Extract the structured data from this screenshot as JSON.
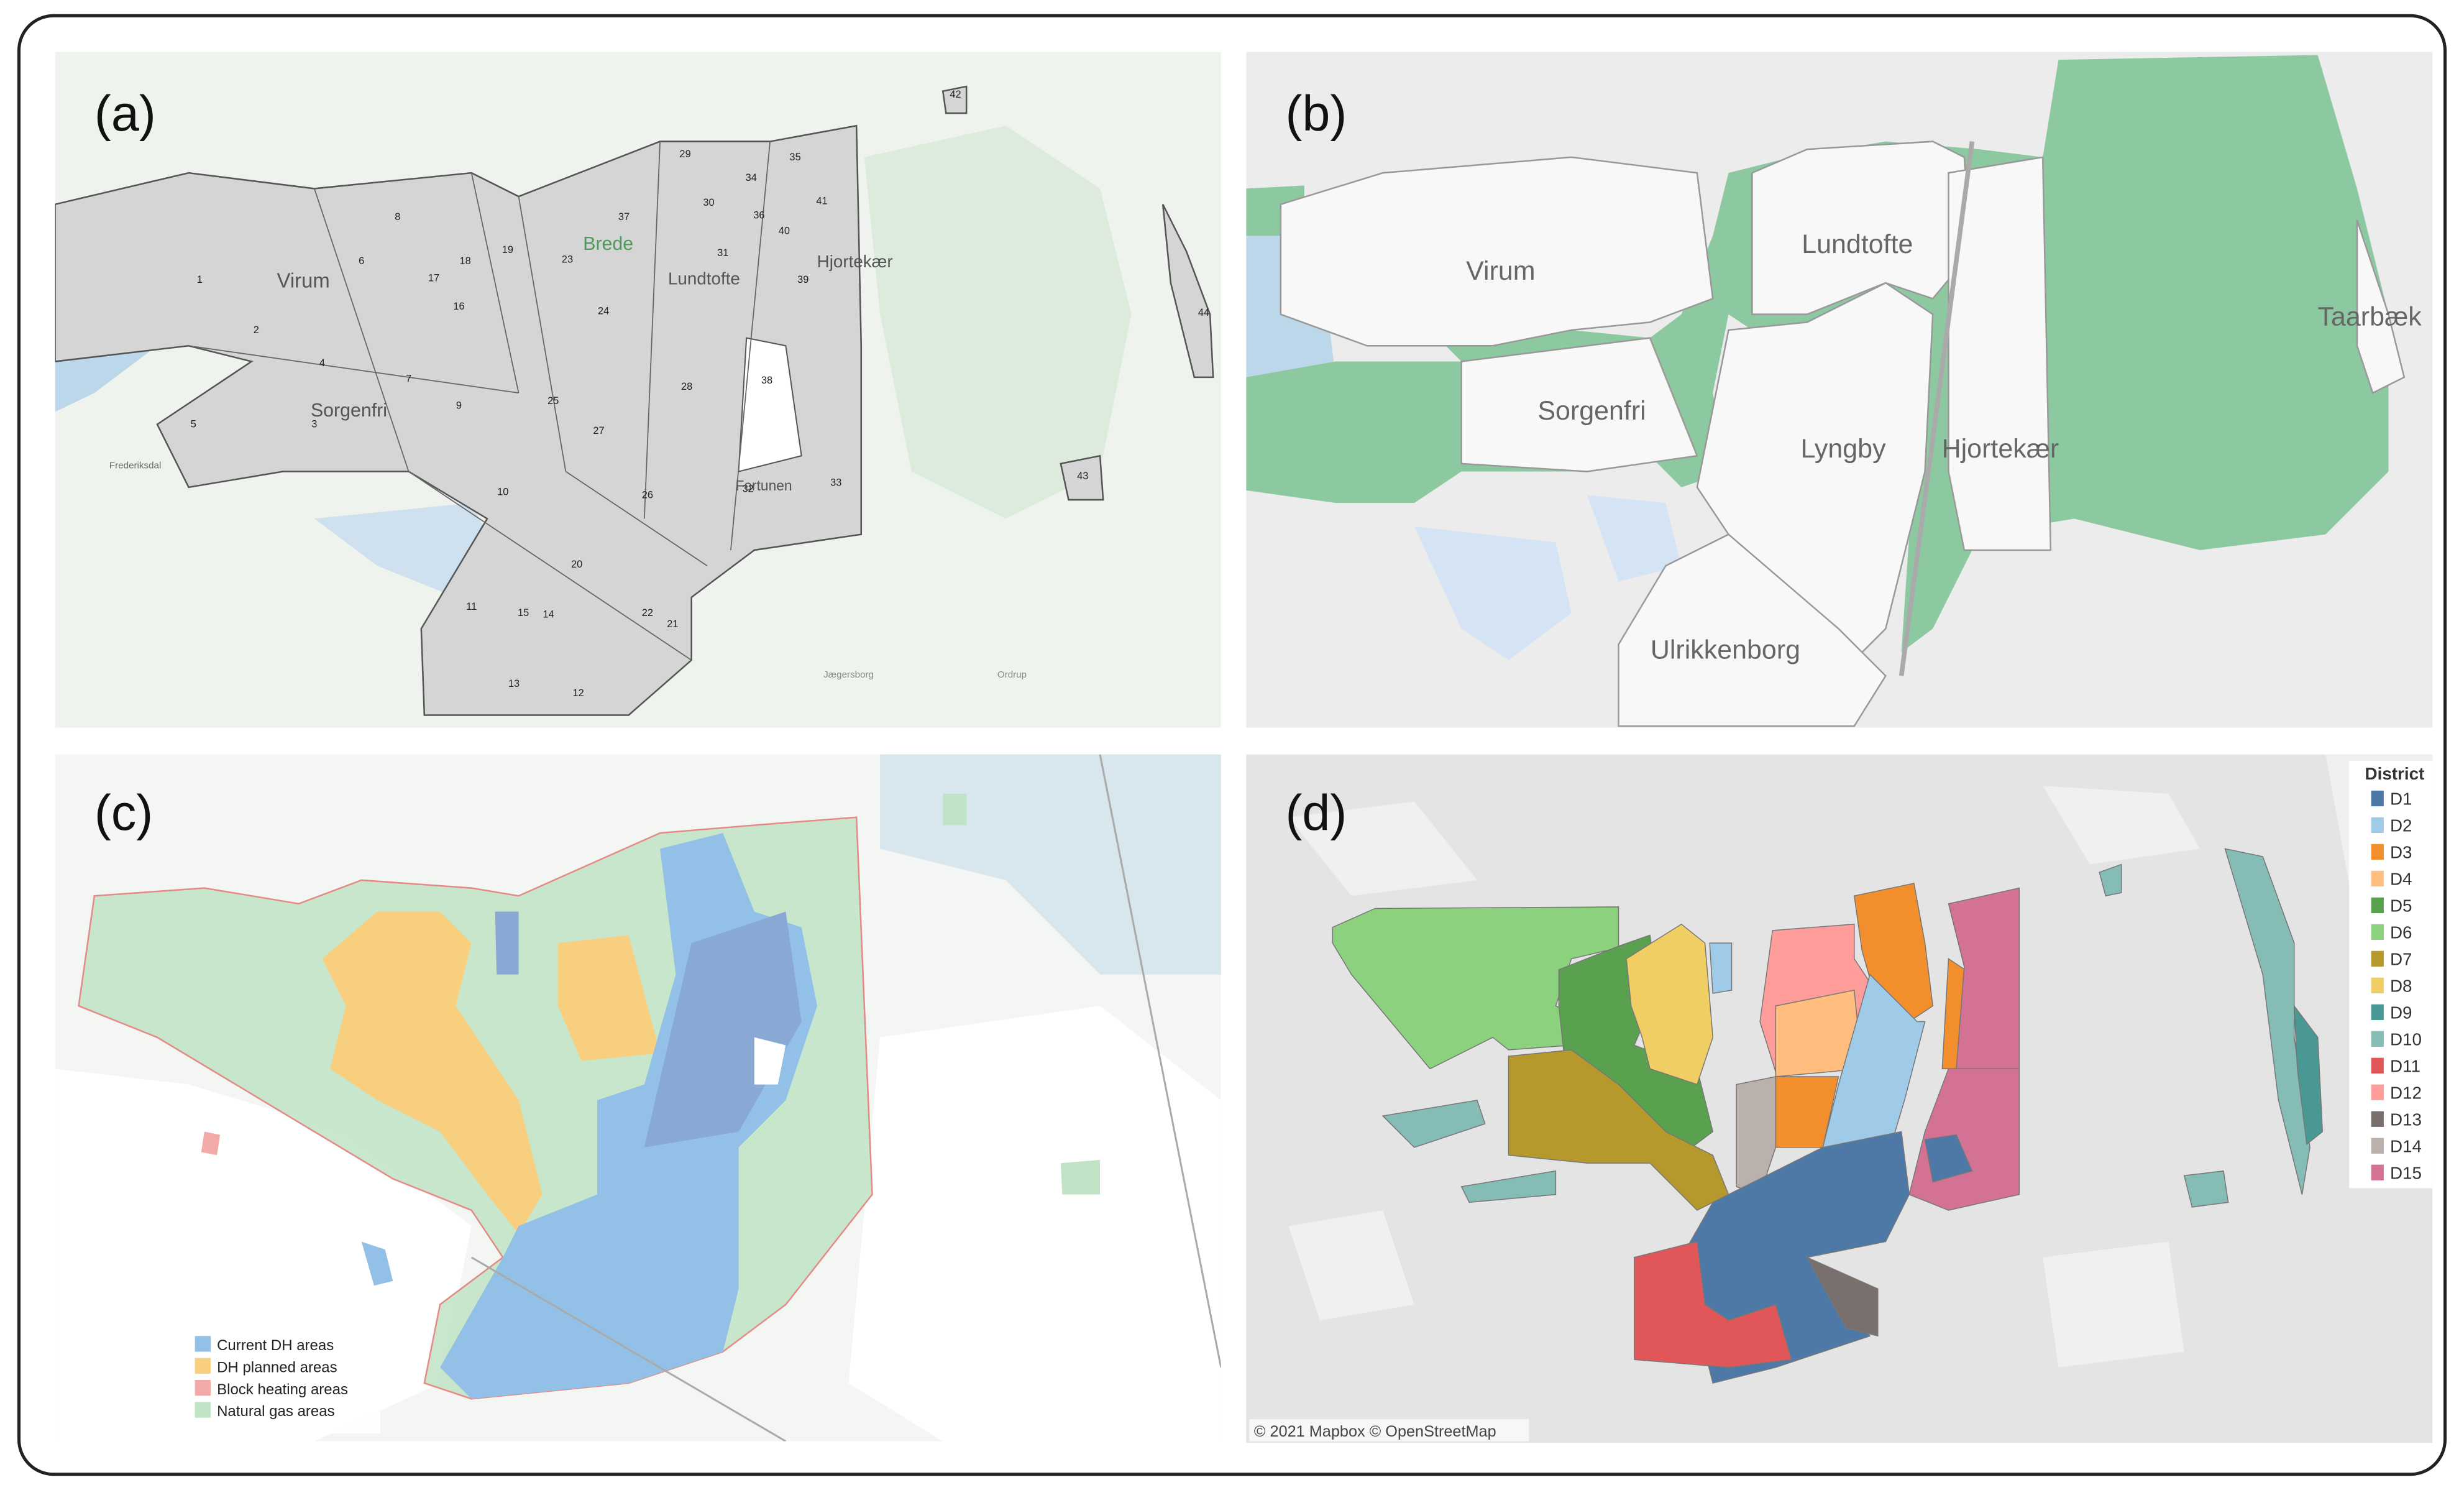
{
  "panels": [
    {
      "label": "(a)",
      "places": [
        "Virum",
        "Sorgenfri",
        "Brede",
        "Lundtofte",
        "Hjortekær",
        "Fortunen",
        "Frederiksdal",
        "Jægersborg",
        "Ordrup"
      ],
      "districts": [
        "1",
        "2",
        "3",
        "4",
        "5",
        "6",
        "7",
        "8",
        "9",
        "10",
        "11",
        "12",
        "13",
        "14",
        "15",
        "16",
        "17",
        "18",
        "19",
        "20",
        "21",
        "22",
        "23",
        "24",
        "25",
        "26",
        "27",
        "28",
        "29",
        "30",
        "31",
        "32",
        "33",
        "34",
        "35",
        "36",
        "37",
        "38",
        "39",
        "40",
        "41",
        "42",
        "43",
        "44"
      ]
    },
    {
      "label": "(b)",
      "places": [
        "Virum",
        "Lundtofte",
        "Taarbæk",
        "Sorgenfri",
        "Lyngby",
        "Hjortekær",
        "Ulrikkenborg"
      ]
    },
    {
      "label": "(c)",
      "legend": [
        {
          "name": "Current DH areas",
          "color": "#93c0e6"
        },
        {
          "name": "DH planned areas",
          "color": "#f7cf7e"
        },
        {
          "name": "Block heating areas",
          "color": "#f2aaa8"
        },
        {
          "name": "Natural gas areas",
          "color": "#bfe3c4"
        }
      ]
    },
    {
      "label": "(d)",
      "legend_title": "District",
      "legend": [
        {
          "name": "D1",
          "color": "#4e79a7"
        },
        {
          "name": "D2",
          "color": "#a0cbe8"
        },
        {
          "name": "D3",
          "color": "#f28e2b"
        },
        {
          "name": "D4",
          "color": "#ffbe7d"
        },
        {
          "name": "D5",
          "color": "#59a14f"
        },
        {
          "name": "D6",
          "color": "#8cd17d"
        },
        {
          "name": "D7",
          "color": "#b6992d"
        },
        {
          "name": "D8",
          "color": "#f1ce63"
        },
        {
          "name": "D9",
          "color": "#499894"
        },
        {
          "name": "D10",
          "color": "#86bcb6"
        },
        {
          "name": "D11",
          "color": "#e15759"
        },
        {
          "name": "D12",
          "color": "#ff9d9a"
        },
        {
          "name": "D13",
          "color": "#79706e"
        },
        {
          "name": "D14",
          "color": "#bab0ac"
        },
        {
          "name": "D15",
          "color": "#d37295"
        }
      ],
      "credit": "© 2021 Mapbox © OpenStreetMap"
    }
  ]
}
